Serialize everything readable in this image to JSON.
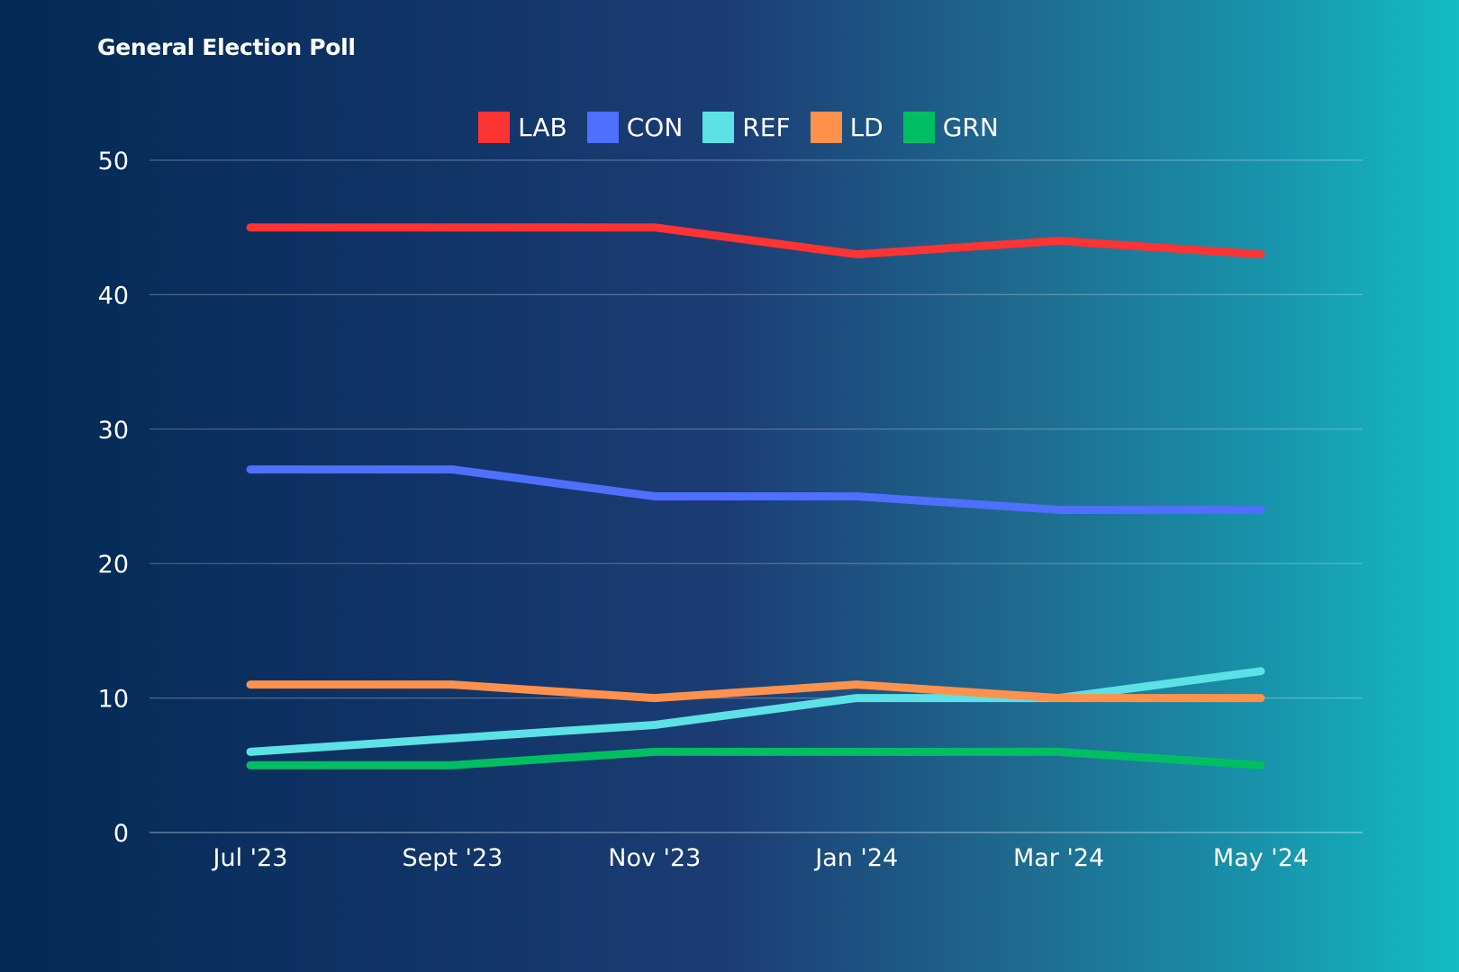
{
  "chart_data": {
    "type": "line",
    "title": "General Election Poll",
    "xlabel": "",
    "ylabel": "",
    "categories": [
      "Jul '23",
      "Sept '23",
      "Nov '23",
      "Jan '24",
      "Mar '24",
      "May '24"
    ],
    "ylim": [
      0,
      50
    ],
    "yticks": [
      "0",
      "10",
      "20",
      "30",
      "40",
      "50"
    ],
    "ytick_values": [
      0,
      10,
      20,
      30,
      40,
      50
    ],
    "grid": true,
    "legend_position": "top-center",
    "series": [
      {
        "name": "LAB",
        "color": "#ff3333",
        "values": [
          45,
          45,
          45,
          43,
          44,
          43
        ]
      },
      {
        "name": "CON",
        "color": "#4f6fff",
        "values": [
          27,
          27,
          25,
          25,
          24,
          24
        ]
      },
      {
        "name": "REF",
        "color": "#5ce1e6",
        "values": [
          6,
          7,
          8,
          10,
          10,
          12
        ]
      },
      {
        "name": "LD",
        "color": "#ff914d",
        "values": [
          11,
          11,
          10,
          11,
          10,
          10
        ]
      },
      {
        "name": "GRN",
        "color": "#00bf63",
        "values": [
          5,
          5,
          6,
          6,
          6,
          5
        ]
      }
    ]
  }
}
